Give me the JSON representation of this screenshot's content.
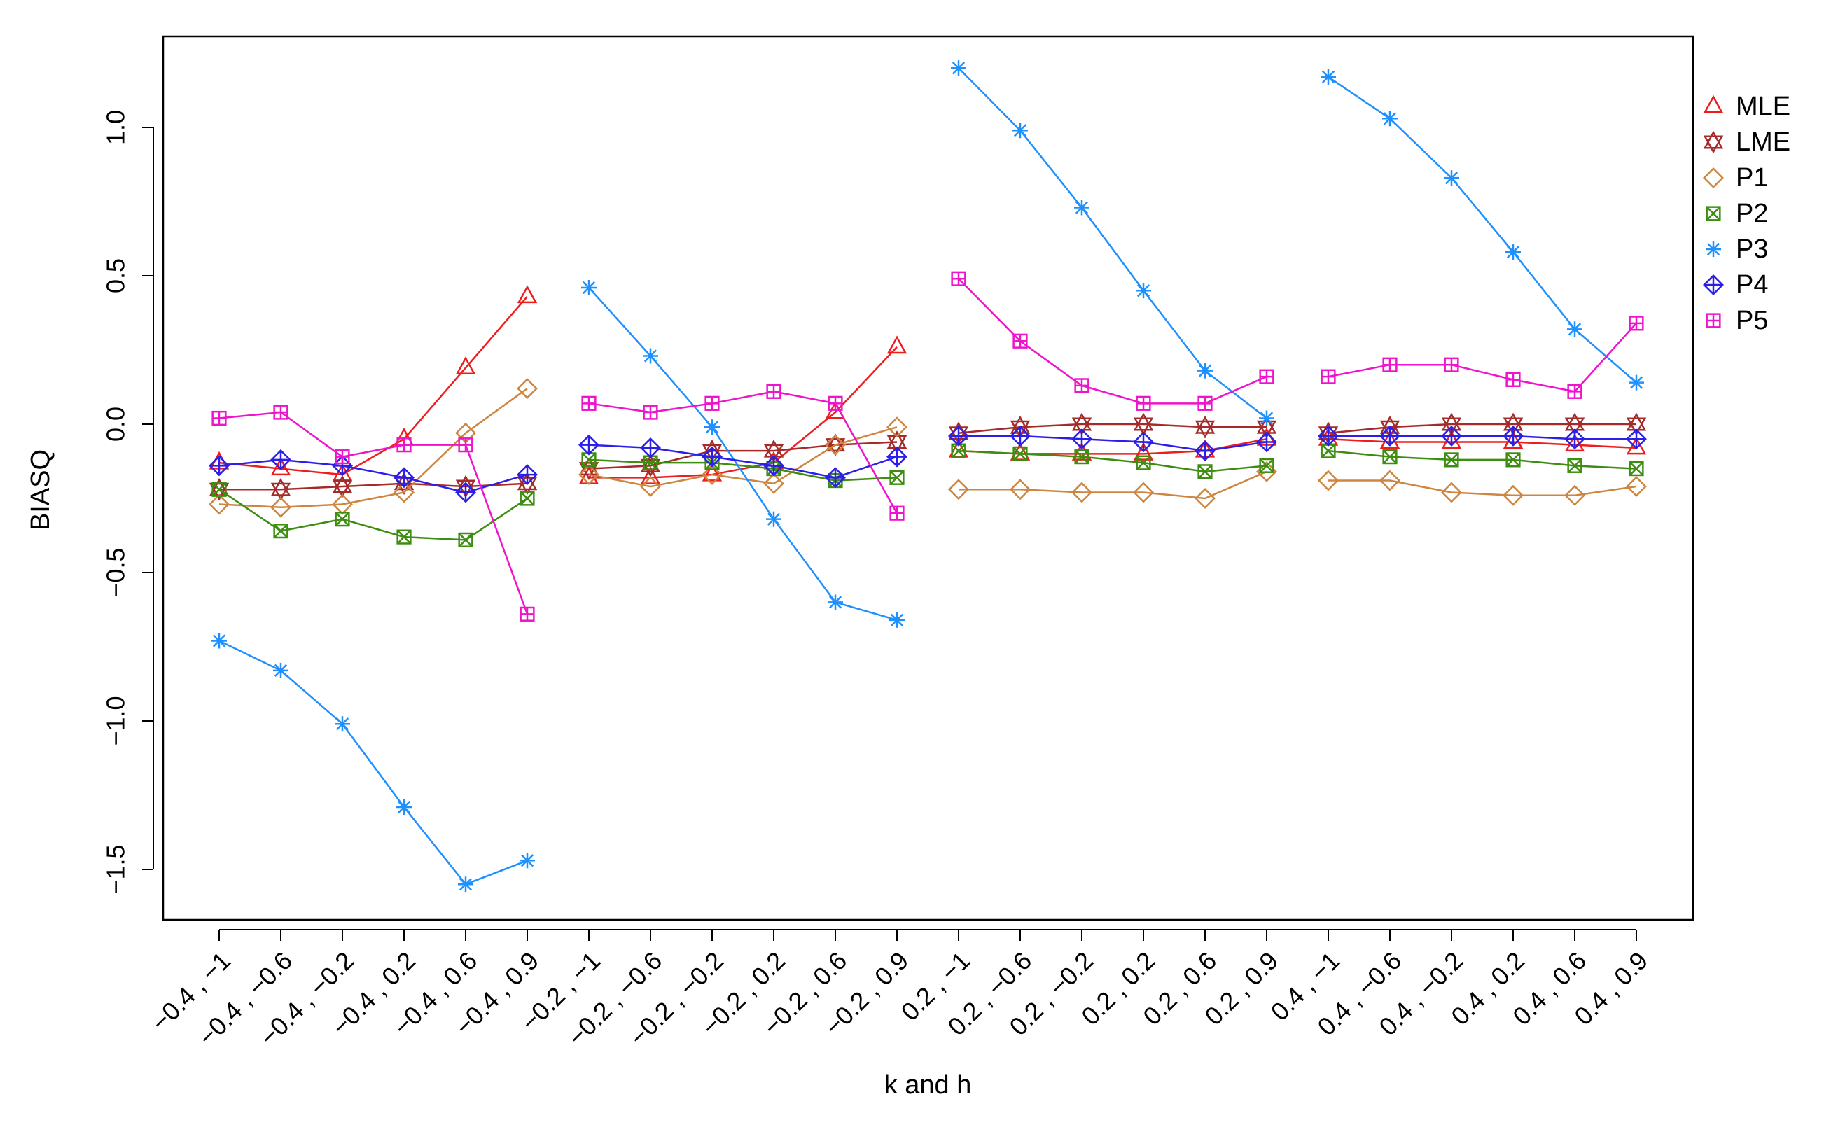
{
  "chart_data": {
    "type": "line",
    "title": "",
    "xlabel": "k and h",
    "ylabel": "BIASQ",
    "ylim": [
      -1.65,
      1.3
    ],
    "yticks": [
      1.0,
      0.5,
      0.0,
      -0.5,
      -1.0,
      -1.5
    ],
    "ytick_labels": [
      "1.0",
      "0.5",
      "0.0",
      "−0.5",
      "−1.0",
      "−1.5"
    ],
    "categories": [
      "−0.4 , −1",
      "−0.4 , −0.6",
      "−0.4 , −0.2",
      "−0.4 , 0.2",
      "−0.4 , 0.6",
      "−0.4 , 0.9",
      "−0.2 , −1",
      "−0.2 , −0.6",
      "−0.2 , −0.2",
      "−0.2 , 0.2",
      "−0.2 , 0.6",
      "−0.2 , 0.9",
      "0.2 , −1",
      "0.2 , −0.6",
      "0.2 , −0.2",
      "0.2 , 0.2",
      "0.2 , 0.6",
      "0.2 , 0.9",
      "0.4 , −1",
      "0.4 , −0.6",
      "0.4 , −0.2",
      "0.4 , 0.2",
      "0.4 , 0.6",
      "0.4 , 0.9"
    ],
    "groups": [
      [
        0,
        5
      ],
      [
        6,
        11
      ],
      [
        12,
        17
      ],
      [
        18,
        23
      ]
    ],
    "legend_position": "right",
    "series": [
      {
        "name": "MLE",
        "color": "#ee1c1c",
        "marker": "triangle",
        "values": [
          -0.13,
          -0.15,
          -0.17,
          -0.05,
          0.19,
          0.43,
          -0.18,
          -0.18,
          -0.17,
          -0.13,
          0.04,
          0.26,
          -0.09,
          -0.1,
          -0.1,
          -0.1,
          -0.09,
          -0.05,
          -0.05,
          -0.06,
          -0.06,
          -0.06,
          -0.07,
          -0.08
        ]
      },
      {
        "name": "LME",
        "color": "#a52a2a",
        "marker": "star-of-david",
        "values": [
          -0.22,
          -0.22,
          -0.21,
          -0.2,
          -0.21,
          -0.2,
          -0.15,
          -0.14,
          -0.09,
          -0.09,
          -0.07,
          -0.06,
          -0.03,
          -0.01,
          0.0,
          0.0,
          -0.01,
          -0.01,
          -0.03,
          -0.01,
          0.0,
          0.0,
          0.0,
          0.0
        ]
      },
      {
        "name": "P1",
        "color": "#cd853f",
        "marker": "diamond",
        "values": [
          -0.27,
          -0.28,
          -0.27,
          -0.23,
          -0.03,
          0.12,
          -0.17,
          -0.21,
          -0.17,
          -0.2,
          -0.07,
          -0.01,
          -0.22,
          -0.22,
          -0.23,
          -0.23,
          -0.25,
          -0.16,
          -0.19,
          -0.19,
          -0.23,
          -0.24,
          -0.24,
          -0.21
        ]
      },
      {
        "name": "P2",
        "color": "#3d8e10",
        "marker": "square-x",
        "values": [
          -0.22,
          -0.36,
          -0.32,
          -0.38,
          -0.39,
          -0.25,
          -0.12,
          -0.13,
          -0.13,
          -0.15,
          -0.19,
          -0.18,
          -0.09,
          -0.1,
          -0.11,
          -0.13,
          -0.16,
          -0.14,
          -0.09,
          -0.11,
          -0.12,
          -0.12,
          -0.14,
          -0.15
        ]
      },
      {
        "name": "P3",
        "color": "#1e90ff",
        "marker": "asterisk",
        "values": [
          -0.73,
          -0.83,
          -1.01,
          -1.29,
          -1.55,
          -1.47,
          0.46,
          0.23,
          -0.01,
          -0.32,
          -0.6,
          -0.66,
          1.2,
          0.99,
          0.73,
          0.45,
          0.18,
          0.02,
          1.17,
          1.03,
          0.83,
          0.58,
          0.32,
          0.14
        ]
      },
      {
        "name": "P4",
        "color": "#2b1ee8",
        "marker": "diamond-plus",
        "values": [
          -0.14,
          -0.12,
          -0.14,
          -0.18,
          -0.23,
          -0.17,
          -0.07,
          -0.08,
          -0.11,
          -0.14,
          -0.18,
          -0.11,
          -0.04,
          -0.04,
          -0.05,
          -0.06,
          -0.09,
          -0.06,
          -0.04,
          -0.04,
          -0.04,
          -0.04,
          -0.05,
          -0.05
        ]
      },
      {
        "name": "P5",
        "color": "#ee14cc",
        "marker": "square-plus",
        "values": [
          0.02,
          0.04,
          -0.11,
          -0.07,
          -0.07,
          -0.64,
          0.07,
          0.04,
          0.07,
          0.11,
          0.07,
          -0.3,
          0.49,
          0.28,
          0.13,
          0.07,
          0.07,
          0.16,
          0.16,
          0.2,
          0.2,
          0.15,
          0.11,
          0.34
        ]
      }
    ]
  }
}
